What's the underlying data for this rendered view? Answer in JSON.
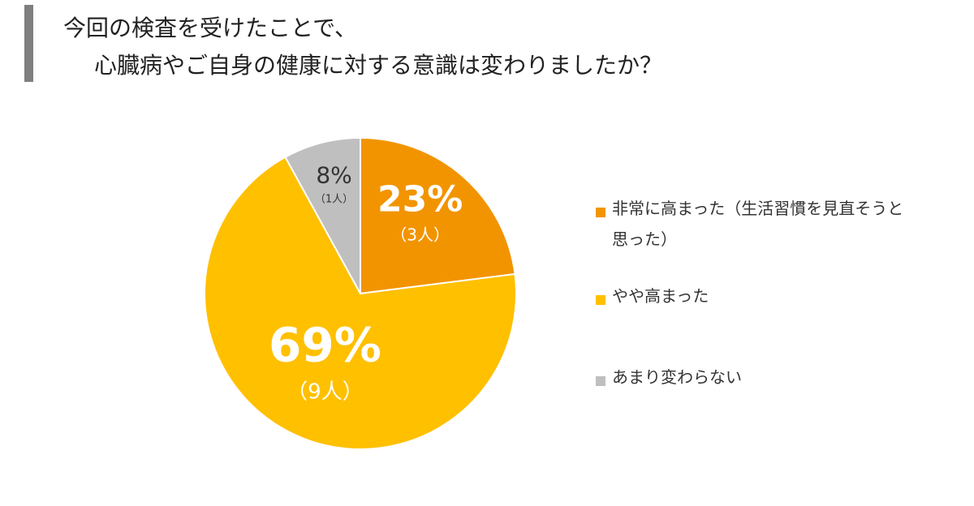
{
  "title": {
    "line1": "今回の検査を受けたことで、",
    "line2": "心臓病やご自身の健康に対する意識は変わりましたか？"
  },
  "colors": {
    "title_bar": "#7f7f7f",
    "slice_border": "#ffffff"
  },
  "chart_data": {
    "type": "pie",
    "start_angle_deg": 0,
    "direction": "clockwise",
    "slices": [
      {
        "label": "非常に高まった（生活習慣を見直そうと思った）",
        "value": 23,
        "pct_label": "23%",
        "count_label": "（3人）",
        "color": "#f29400",
        "text_color": "#ffffff"
      },
      {
        "label": "やや高まった",
        "value": 69,
        "pct_label": "69%",
        "count_label": "（9人）",
        "color": "#ffc000",
        "text_color": "#ffffff"
      },
      {
        "label": "あまり変わらない",
        "value": 8,
        "pct_label": "8%",
        "count_label": "（1人）",
        "color": "#bfbfbf",
        "text_color": "#333333"
      }
    ],
    "legend_position": "right"
  }
}
